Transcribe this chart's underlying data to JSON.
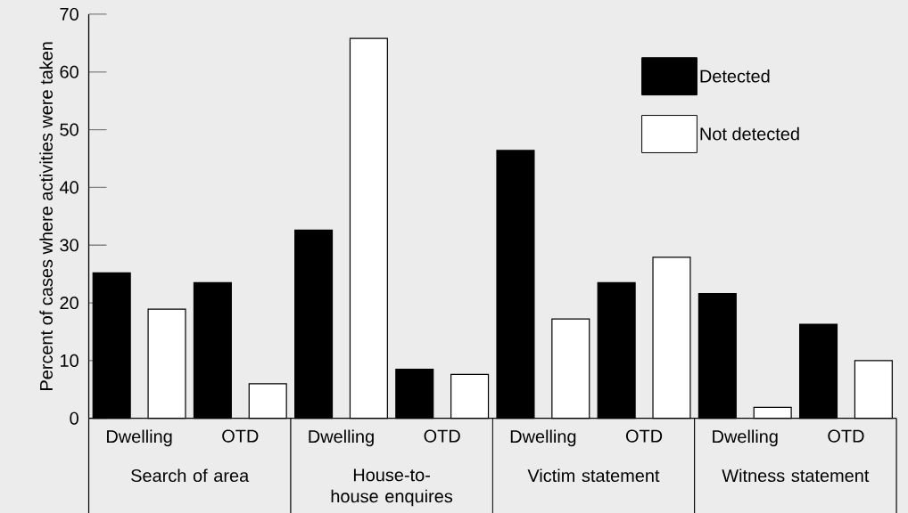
{
  "chart_data": {
    "type": "bar",
    "ylabel": "Percent of cases where activities were taken",
    "categories": [
      "Dwelling",
      "OTD",
      "Dwelling",
      "OTD",
      "Dwelling",
      "OTD",
      "Dwelling",
      "OTD"
    ],
    "series": [
      {
        "name": "Detected",
        "color": "#000000",
        "values": [
          25.2,
          23.5,
          32.6,
          8.5,
          46.4,
          23.5,
          21.6,
          16.3
        ]
      },
      {
        "name": "Not detected",
        "color": "#ffffff",
        "values": [
          18.9,
          6.0,
          65.8,
          7.6,
          17.2,
          27.9,
          1.9,
          10.0
        ]
      }
    ],
    "ylim": [
      0,
      70
    ],
    "yticks": [
      0,
      10,
      20,
      30,
      40,
      50,
      60,
      70
    ],
    "annotations": [
      "Search of area",
      "House-to-house enquires",
      "Victim statement",
      "Witness statement"
    ],
    "legend": "top right"
  }
}
